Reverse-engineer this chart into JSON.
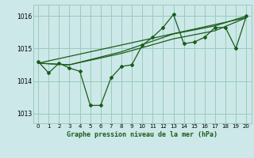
{
  "bg_color": "#cce8e8",
  "grid_color": "#99ccbb",
  "line_color": "#1a5c1a",
  "title": "Graphe pression niveau de la mer (hPa)",
  "xlim": [
    -0.5,
    20.5
  ],
  "ylim": [
    1012.7,
    1016.35
  ],
  "yticks": [
    1013,
    1014,
    1015,
    1016
  ],
  "xticks": [
    0,
    1,
    2,
    3,
    4,
    5,
    6,
    7,
    8,
    9,
    10,
    11,
    12,
    13,
    14,
    15,
    16,
    17,
    18,
    19,
    20
  ],
  "series1_x": [
    0,
    1,
    2,
    3,
    4,
    5,
    6,
    7,
    8,
    9,
    10,
    11,
    12,
    13,
    14,
    15,
    16,
    17,
    18,
    19,
    20
  ],
  "series1_y": [
    1014.6,
    1014.25,
    1014.55,
    1014.4,
    1014.3,
    1013.25,
    1013.25,
    1014.1,
    1014.45,
    1014.5,
    1015.1,
    1015.35,
    1015.65,
    1016.05,
    1015.15,
    1015.2,
    1015.35,
    1015.65,
    1015.65,
    1015.0,
    1016.0
  ],
  "trend1_x": [
    0,
    20
  ],
  "trend1_y": [
    1014.55,
    1015.95
  ],
  "trend2_x": [
    0,
    3,
    8,
    13,
    17,
    20
  ],
  "trend2_y": [
    1014.55,
    1014.5,
    1014.85,
    1015.3,
    1015.55,
    1015.95
  ],
  "trend3_x": [
    0,
    3,
    8,
    13,
    17,
    20
  ],
  "trend3_y": [
    1014.55,
    1014.5,
    1014.9,
    1015.45,
    1015.7,
    1016.0
  ]
}
